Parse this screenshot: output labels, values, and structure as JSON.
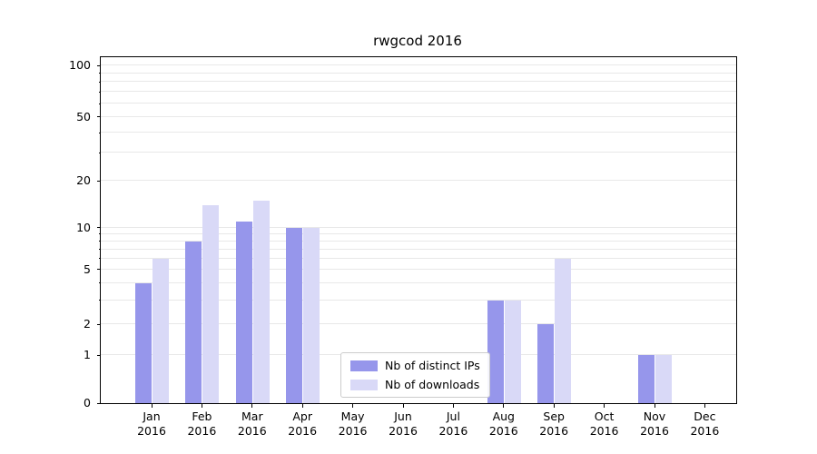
{
  "title": "rwgcod 2016",
  "legend": {
    "items": [
      {
        "label": "Nb of distinct IPs",
        "color": "#9696eb"
      },
      {
        "label": "Nb of downloads",
        "color": "#d9d9f7"
      }
    ]
  },
  "chart_data": {
    "type": "bar",
    "title": "rwgcod 2016",
    "categories": [
      "Jan 2016",
      "Feb 2016",
      "Mar 2016",
      "Apr 2016",
      "May 2016",
      "Jun 2016",
      "Jul 2016",
      "Aug 2016",
      "Sep 2016",
      "Oct 2016",
      "Nov 2016",
      "Dec 2016"
    ],
    "series": [
      {
        "name": "Nb of distinct IPs",
        "color": "#9696eb",
        "values": [
          4,
          8,
          11,
          10,
          0,
          0,
          0,
          3,
          2,
          0,
          1,
          0
        ]
      },
      {
        "name": "Nb of downloads",
        "color": "#d9d9f7",
        "values": [
          6,
          14,
          15,
          10,
          0,
          0,
          0,
          3,
          6,
          0,
          1,
          0
        ]
      }
    ],
    "xlabel": "",
    "ylabel": "",
    "yticks": [
      0,
      1,
      2,
      5,
      10,
      20,
      50,
      100
    ],
    "minor_gridlines": [
      3,
      4,
      6,
      7,
      8,
      9,
      30,
      40,
      60,
      70,
      80,
      90
    ],
    "scale": "symlog",
    "ylim": [
      0,
      120
    ],
    "grid": true,
    "legend_position": "lower center",
    "scale_anchors": [
      [
        0,
        0
      ],
      [
        1,
        0.139
      ],
      [
        2,
        0.228
      ],
      [
        5,
        0.386
      ],
      [
        10,
        0.507
      ],
      [
        20,
        0.643
      ],
      [
        50,
        0.827
      ],
      [
        100,
        0.976
      ]
    ]
  }
}
